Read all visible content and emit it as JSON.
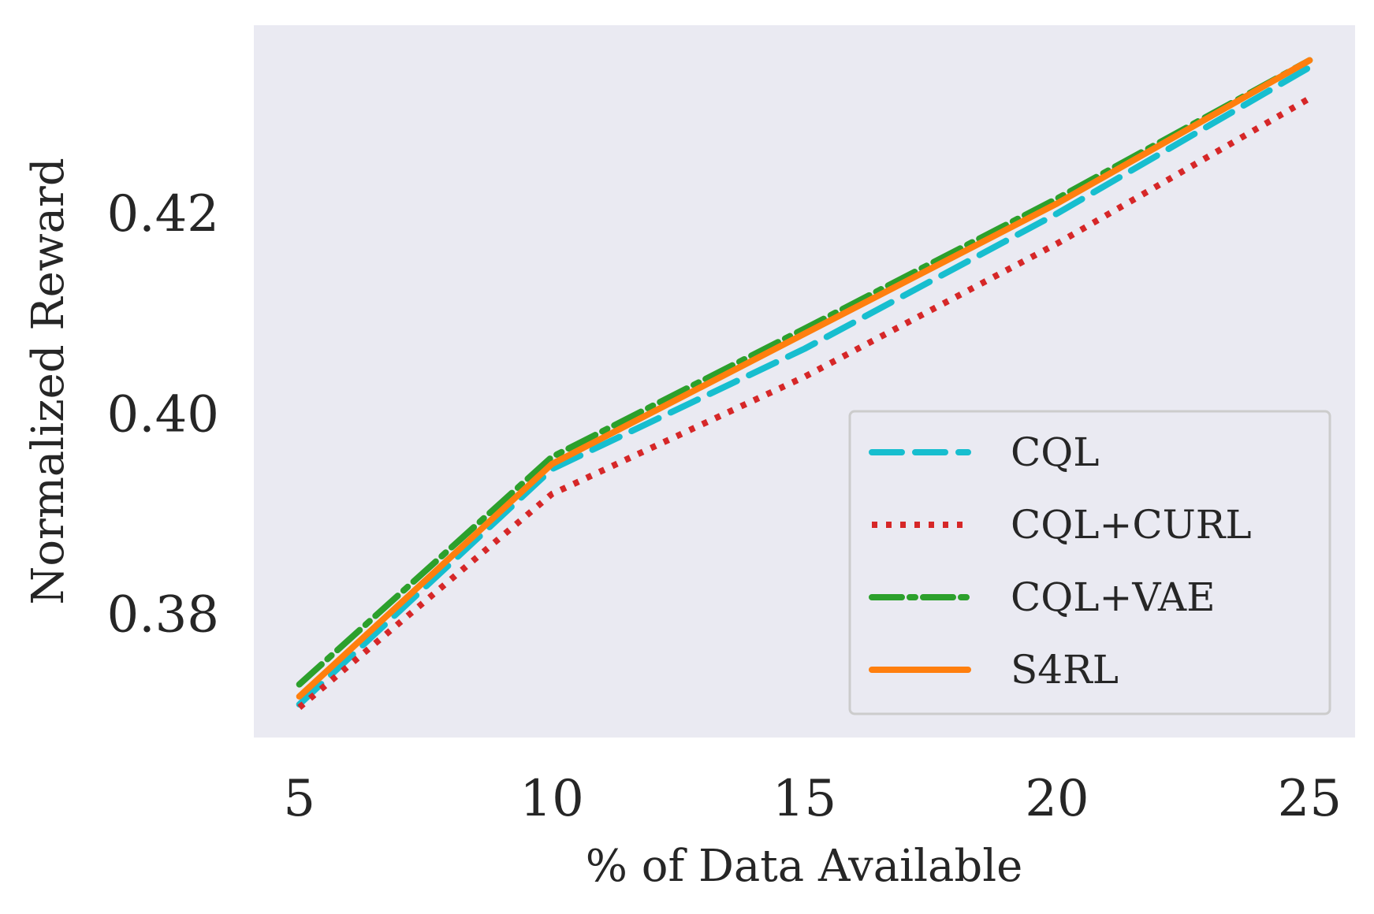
{
  "chart_data": {
    "type": "line",
    "title": "",
    "xlabel": "% of Data Available",
    "ylabel": "Normalized Reward",
    "x": [
      5,
      10,
      15,
      20,
      25
    ],
    "xlim": [
      4.1,
      25.9
    ],
    "ylim": [
      0.3677,
      0.4388
    ],
    "xticks": [
      5,
      10,
      15,
      20,
      25
    ],
    "yticks": [
      0.38,
      0.4,
      0.42
    ],
    "ytick_labels": [
      "0.38",
      "0.40",
      "0.42"
    ],
    "grid": false,
    "legend_position": "lower-right",
    "series": [
      {
        "name": "CQL",
        "values": [
          0.371,
          0.3945,
          0.4065,
          0.42,
          0.4346
        ],
        "color": "#17becf",
        "style": "dashed"
      },
      {
        "name": "CQL+CURL",
        "values": [
          0.3707,
          0.392,
          0.4037,
          0.417,
          0.4315
        ],
        "color": "#d62728",
        "style": "dotted"
      },
      {
        "name": "CQL+VAE",
        "values": [
          0.373,
          0.3957,
          0.4085,
          0.4215,
          0.4353
        ],
        "color": "#2ca02c",
        "style": "dashdot"
      },
      {
        "name": "S4RL",
        "values": [
          0.3718,
          0.395,
          0.408,
          0.421,
          0.4353
        ],
        "color": "#ff7f0e",
        "style": "solid"
      }
    ]
  }
}
